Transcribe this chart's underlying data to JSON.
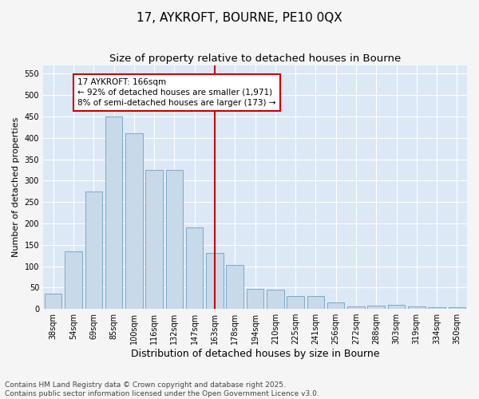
{
  "title": "17, AYKROFT, BOURNE, PE10 0QX",
  "subtitle": "Size of property relative to detached houses in Bourne",
  "xlabel": "Distribution of detached houses by size in Bourne",
  "ylabel": "Number of detached properties",
  "categories": [
    "38sqm",
    "54sqm",
    "69sqm",
    "85sqm",
    "100sqm",
    "116sqm",
    "132sqm",
    "147sqm",
    "163sqm",
    "178sqm",
    "194sqm",
    "210sqm",
    "225sqm",
    "241sqm",
    "256sqm",
    "272sqm",
    "288sqm",
    "303sqm",
    "319sqm",
    "334sqm",
    "350sqm"
  ],
  "values": [
    35,
    135,
    275,
    450,
    410,
    325,
    325,
    190,
    130,
    103,
    47,
    45,
    30,
    30,
    15,
    5,
    8,
    10,
    5,
    3,
    3
  ],
  "bar_color": "#c8d9ea",
  "bar_edge_color": "#7aaac8",
  "vline_position": 8.5,
  "vline_color": "#cc0000",
  "annotation_text": "17 AYKROFT: 166sqm\n← 92% of detached houses are smaller (1,971)\n8% of semi-detached houses are larger (173) →",
  "annotation_box_facecolor": "#ffffff",
  "annotation_box_edgecolor": "#cc0000",
  "ylim": [
    0,
    570
  ],
  "yticks": [
    0,
    50,
    100,
    150,
    200,
    250,
    300,
    350,
    400,
    450,
    500,
    550
  ],
  "plot_bg_color": "#dce8f5",
  "fig_bg_color": "#f5f5f5",
  "grid_color": "#ffffff",
  "footer": "Contains HM Land Registry data © Crown copyright and database right 2025.\nContains public sector information licensed under the Open Government Licence v3.0.",
  "title_fontsize": 11,
  "subtitle_fontsize": 9.5,
  "xlabel_fontsize": 9,
  "ylabel_fontsize": 8,
  "tick_fontsize": 7,
  "annotation_fontsize": 7.5,
  "footer_fontsize": 6.5
}
